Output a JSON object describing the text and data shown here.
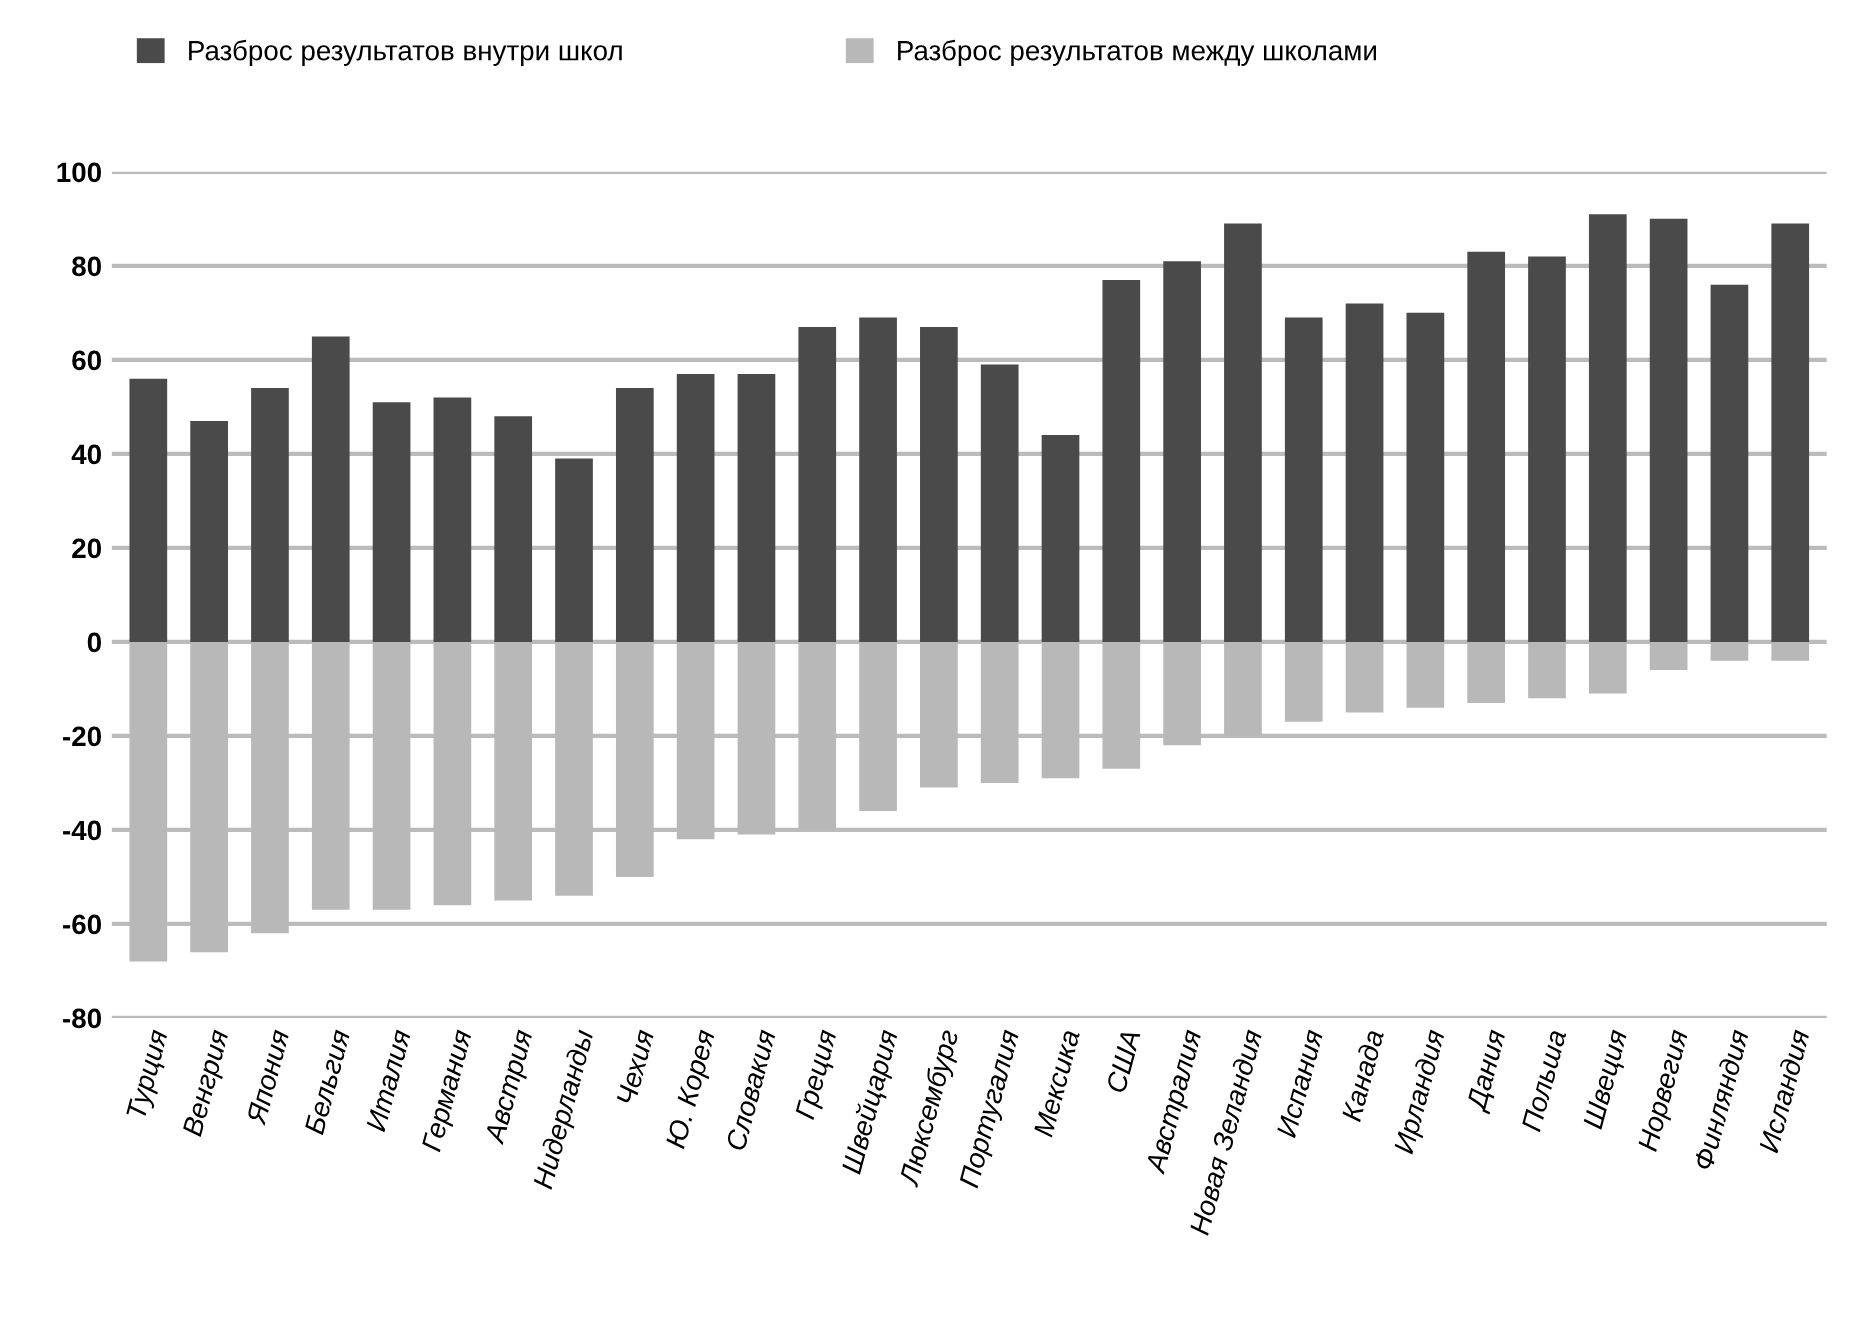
{
  "chart_data": {
    "type": "bar",
    "categories": [
      "Турция",
      "Венгрия",
      "Япония",
      "Бельгия",
      "Италия",
      "Германия",
      "Австрия",
      "Нидерланды",
      "Чехия",
      "Ю. Корея",
      "Словакия",
      "Греция",
      "Швейцария",
      "Люксембург",
      "Португалия",
      "Мексика",
      "США",
      "Австралия",
      "Новая Зеландия",
      "Испания",
      "Канада",
      "Ирландия",
      "Дания",
      "Польша",
      "Швеция",
      "Норвегия",
      "Финляндия",
      "Исландия"
    ],
    "series": [
      {
        "name": "Разброс результатов внутри школ",
        "color": "#4a4a4a",
        "values": [
          56,
          47,
          54,
          65,
          51,
          52,
          48,
          39,
          54,
          57,
          57,
          67,
          69,
          67,
          59,
          44,
          77,
          81,
          89,
          69,
          72,
          70,
          83,
          82,
          91,
          90,
          76,
          89
        ]
      },
      {
        "name": "Разброс результатов между школами",
        "color": "#b8b8b8",
        "values": [
          -68,
          -66,
          -62,
          -57,
          -57,
          -56,
          -55,
          -54,
          -50,
          -42,
          -41,
          -40,
          -36,
          -31,
          -30,
          -29,
          -27,
          -22,
          -20,
          -17,
          -15,
          -14,
          -13,
          -12,
          -11,
          -6,
          -4,
          -4
        ]
      }
    ],
    "stacked": true,
    "ylim": [
      -80,
      100
    ],
    "yticks": [
      -80,
      -60,
      -40,
      -20,
      0,
      20,
      40,
      60,
      80,
      100
    ],
    "grid": "y",
    "legend": "top left"
  }
}
